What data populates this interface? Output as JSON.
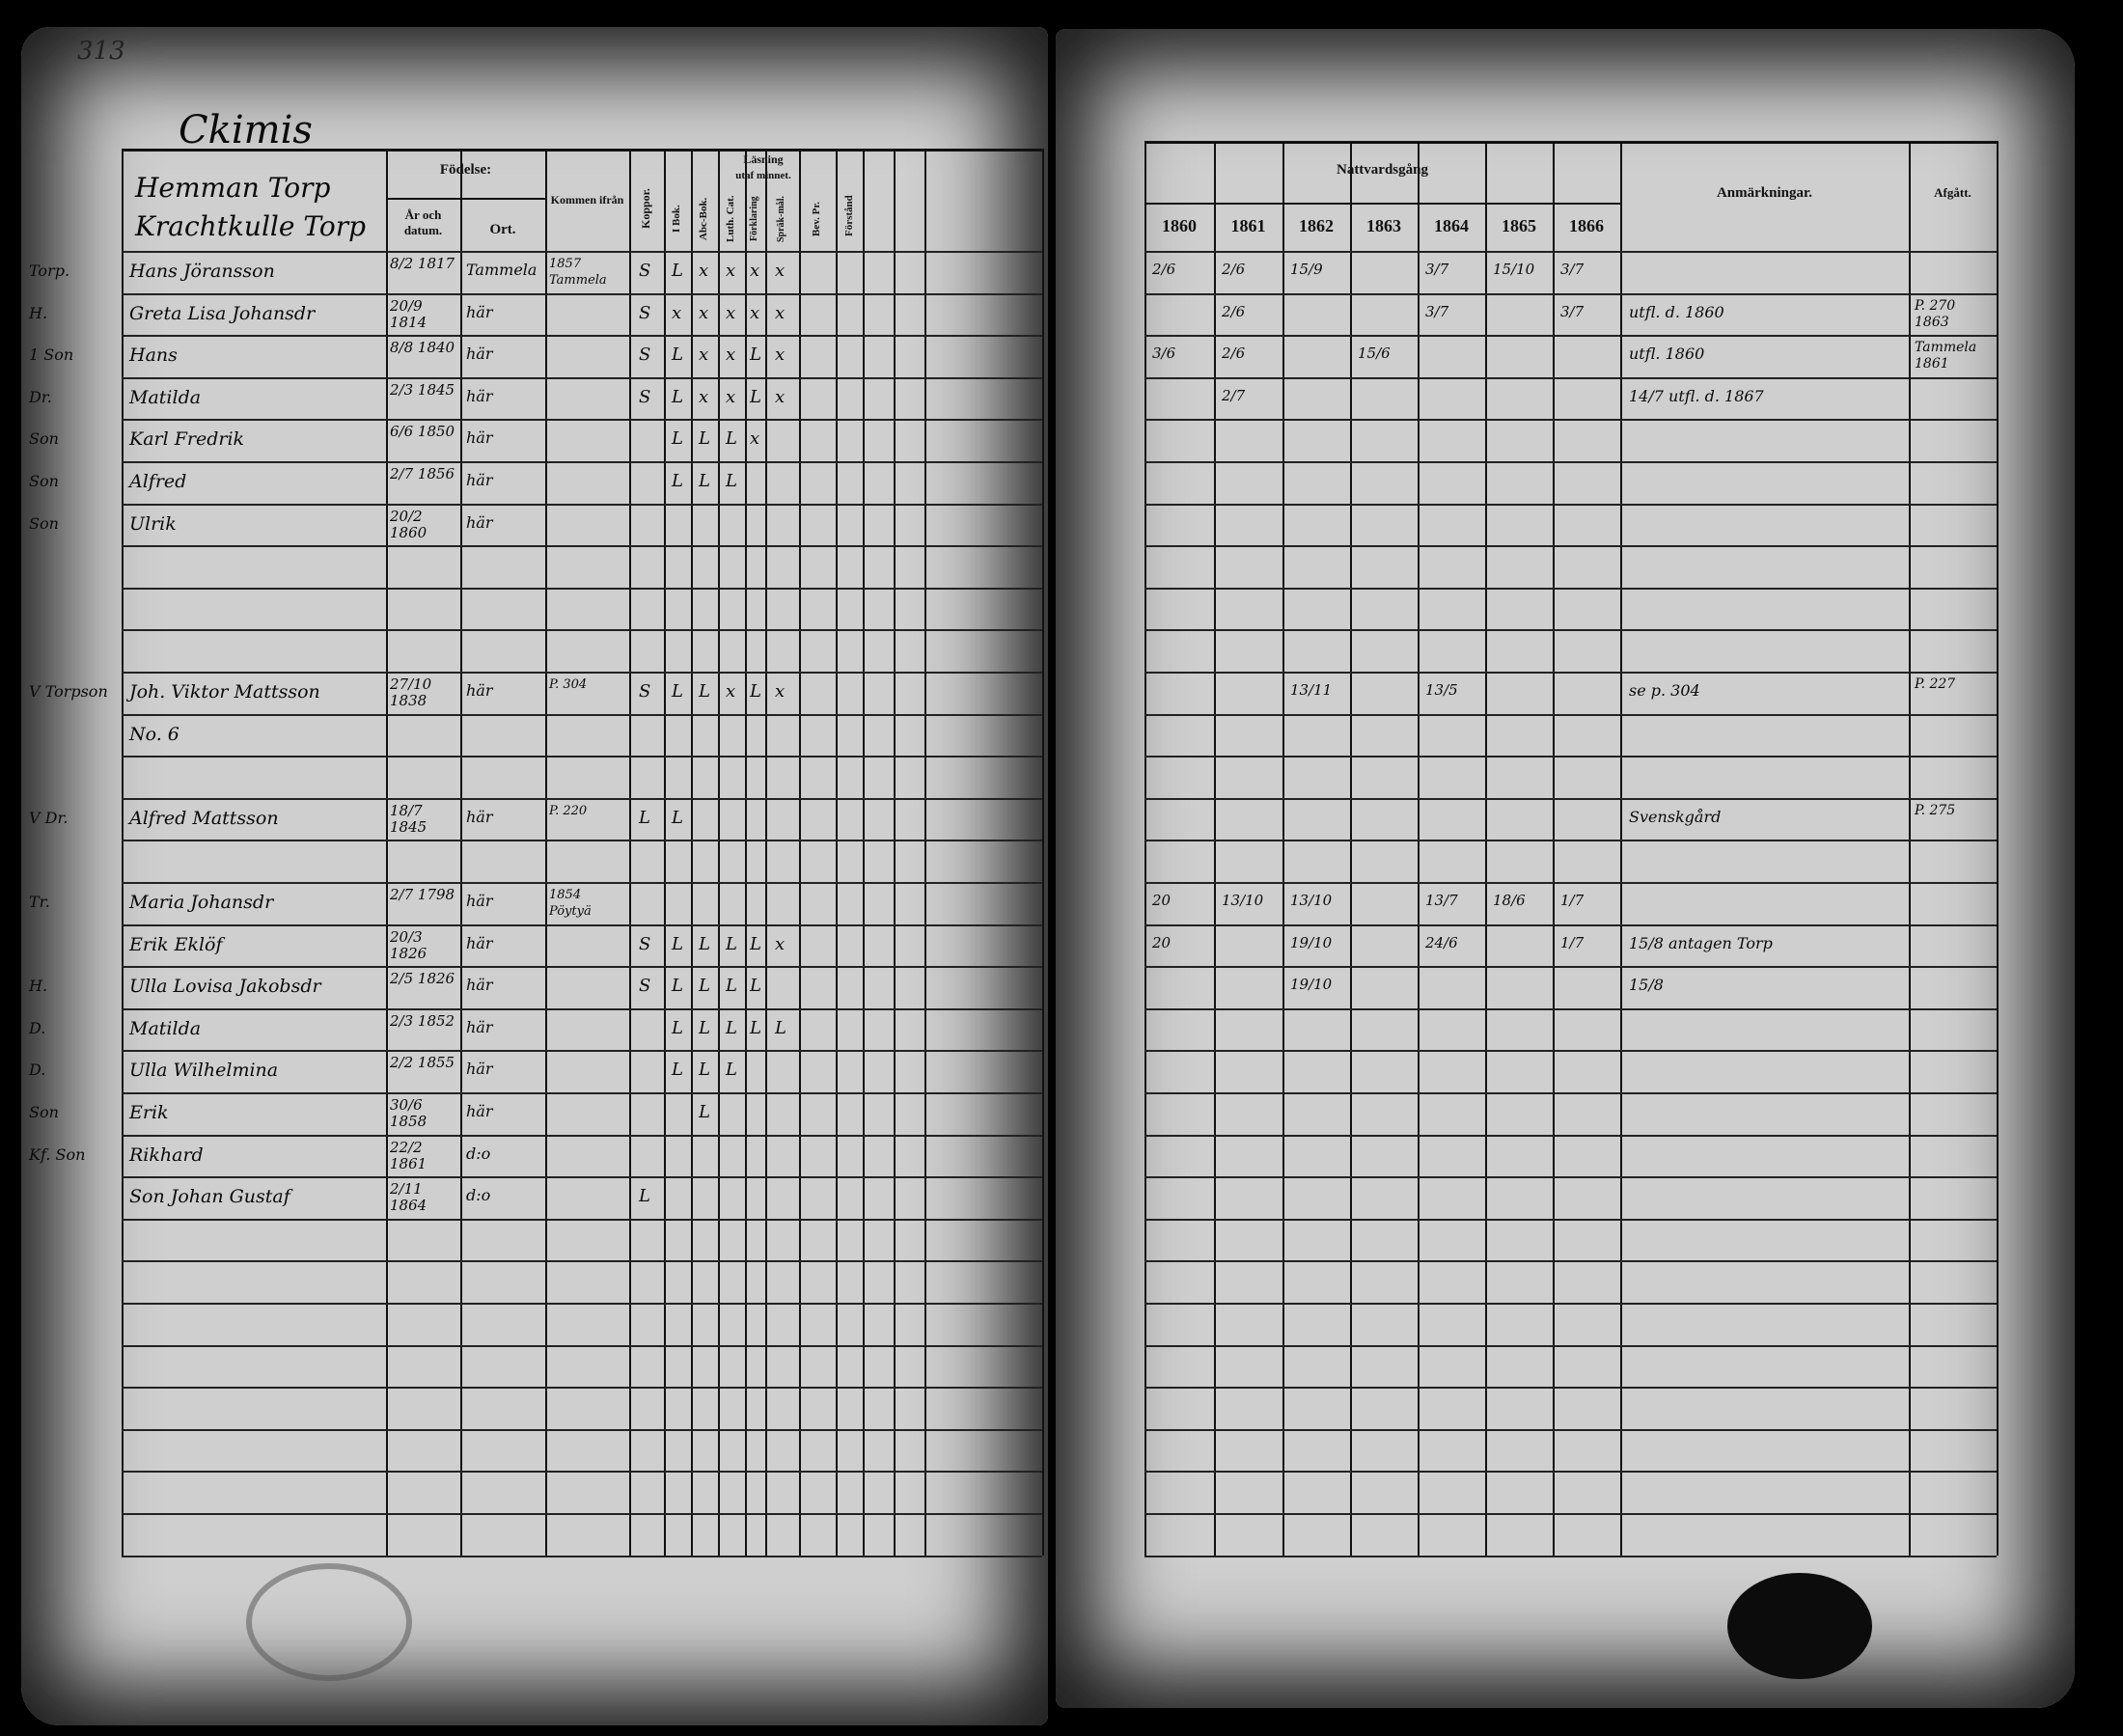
{
  "page_number": "313",
  "village": "Ckimis",
  "household_heading": [
    "Hemman Torp",
    "Krachtkulle Torp"
  ],
  "left_headers": {
    "birth": "Födelse:",
    "year_date": "År och datum.",
    "place": "Ort.",
    "came_from": "Kommen ifrån",
    "smallpox": "Koppor.",
    "reading": "Läsning",
    "by_heart": "utaf minnet.",
    "book": "I Bok.",
    "abc": "Abc-Bok.",
    "catechism": "Luth. Cat.",
    "explanation": "Förklaring",
    "language": "Spräk-mål.",
    "bev": "Bev. Pr.",
    "understanding": "Förstånd"
  },
  "right_headers": {
    "communion": "Nattvardsgång",
    "years": [
      "1860",
      "1861",
      "1862",
      "1863",
      "1864",
      "1865",
      "1866"
    ],
    "remarks": "Anmärkningar.",
    "departed": "Afgått."
  },
  "entries": [
    {
      "row": 0,
      "margin": "Torp.",
      "name": "Hans Jöransson",
      "birth": "8/2 1817",
      "place": "Tammela",
      "from": "1857 Tammela",
      "koppor": "S",
      "marks": [
        "L",
        "x",
        "x",
        "x",
        "x"
      ],
      "nv": [
        "2/6",
        "2/6",
        "15/9",
        "",
        "3/7",
        "15/10",
        "3/7"
      ],
      "remark": "",
      "afg": ""
    },
    {
      "row": 1,
      "margin": "H.",
      "name": "Greta Lisa Johansdr",
      "birth": "20/9 1814",
      "place": "här",
      "from": "",
      "koppor": "S",
      "marks": [
        "x",
        "x",
        "x",
        "x",
        "x"
      ],
      "nv": [
        "",
        "2/6",
        "",
        "",
        "3/7",
        "",
        "3/7"
      ],
      "remark": "utfl. d. 1860",
      "afg": "P. 270 1863"
    },
    {
      "row": 2,
      "margin": "1 Son",
      "name": "Hans",
      "birth": "8/8 1840",
      "place": "här",
      "from": "",
      "koppor": "S",
      "marks": [
        "L",
        "x",
        "x",
        "L",
        "x"
      ],
      "nv": [
        "3/6",
        "2/6",
        "",
        "15/6",
        "",
        "",
        ""
      ],
      "remark": "utfl. 1860",
      "afg": "Tammela 1861"
    },
    {
      "row": 3,
      "margin": "Dr.",
      "name": "Matilda",
      "birth": "2/3 1845",
      "place": "här",
      "from": "",
      "koppor": "S",
      "marks": [
        "L",
        "x",
        "x",
        "L",
        "x"
      ],
      "nv": [
        "",
        "2/7",
        "",
        "",
        "",
        "",
        ""
      ],
      "remark": "14/7 utfl. d. 1867",
      "afg": ""
    },
    {
      "row": 4,
      "margin": "Son",
      "name": "Karl Fredrik",
      "birth": "6/6 1850",
      "place": "här",
      "from": "",
      "koppor": "",
      "marks": [
        "L",
        "L",
        "L",
        "x",
        ""
      ],
      "nv": [
        "",
        "",
        "",
        "",
        "",
        "",
        ""
      ],
      "remark": "",
      "afg": ""
    },
    {
      "row": 5,
      "margin": "Son",
      "name": "Alfred",
      "birth": "2/7 1856",
      "place": "här",
      "from": "",
      "koppor": "",
      "marks": [
        "L",
        "L",
        "L",
        "",
        ""
      ],
      "nv": [
        "",
        "",
        "",
        "",
        "",
        "",
        ""
      ],
      "remark": "",
      "afg": ""
    },
    {
      "row": 6,
      "margin": "Son",
      "name": "Ulrik",
      "birth": "20/2 1860",
      "place": "här",
      "from": "",
      "koppor": "",
      "marks": [
        "",
        "",
        "",
        "",
        ""
      ],
      "nv": [
        "",
        "",
        "",
        "",
        "",
        "",
        ""
      ],
      "remark": "",
      "afg": ""
    },
    {
      "row": 10,
      "margin": "V Torpson",
      "name": "Joh. Viktor Mattsson",
      "birth": "27/10 1838",
      "place": "här",
      "from": "P. 304",
      "koppor": "S",
      "marks": [
        "L",
        "L",
        "x",
        "L",
        "x"
      ],
      "nv": [
        "",
        "",
        "13/11",
        "",
        "13/5",
        "",
        ""
      ],
      "remark": "se p. 304",
      "afg": "P. 227"
    },
    {
      "row": 11,
      "margin": "",
      "name": "No. 6",
      "birth": "",
      "place": "",
      "from": "",
      "koppor": "",
      "marks": [
        "",
        "",
        "",
        "",
        ""
      ],
      "nv": [
        "",
        "",
        "",
        "",
        "",
        "",
        ""
      ],
      "remark": "",
      "afg": ""
    },
    {
      "row": 13,
      "margin": "V Dr.",
      "name": "Alfred Mattsson",
      "birth": "18/7 1845",
      "place": "här",
      "from": "P. 220",
      "koppor": "L",
      "marks": [
        "L",
        "",
        "",
        "",
        ""
      ],
      "nv": [
        "",
        "",
        "",
        "",
        "",
        "",
        ""
      ],
      "remark": "Svenskgård",
      "afg": "P. 275"
    },
    {
      "row": 15,
      "margin": "Tr.",
      "name": "Maria Johansdr",
      "birth": "2/7 1798",
      "place": "här",
      "from": "1854 Pöytyä",
      "koppor": "",
      "marks": [
        "",
        "",
        "",
        "",
        ""
      ],
      "nv": [
        "20",
        "13/10",
        "13/10",
        "",
        "13/7",
        "18/6",
        "1/7"
      ],
      "remark": "",
      "afg": ""
    },
    {
      "row": 16,
      "margin": "",
      "name": "Erik Eklöf",
      "birth": "20/3 1826",
      "place": "här",
      "from": "",
      "koppor": "S",
      "marks": [
        "L",
        "L",
        "L",
        "L",
        "x"
      ],
      "nv": [
        "20",
        "",
        "19/10",
        "",
        "24/6",
        "",
        "1/7"
      ],
      "remark": "15/8 antagen Torp",
      "afg": ""
    },
    {
      "row": 17,
      "margin": "H.",
      "name": "Ulla Lovisa Jakobsdr",
      "birth": "2/5 1826",
      "place": "här",
      "from": "",
      "koppor": "S",
      "marks": [
        "L",
        "L",
        "L",
        "L",
        ""
      ],
      "nv": [
        "",
        "",
        "19/10",
        "",
        "",
        "",
        ""
      ],
      "remark": "15/8",
      "afg": ""
    },
    {
      "row": 18,
      "margin": "D.",
      "name": "Matilda",
      "birth": "2/3 1852",
      "place": "här",
      "from": "",
      "koppor": "",
      "marks": [
        "L",
        "L",
        "L",
        "L",
        "L"
      ],
      "nv": [
        "",
        "",
        "",
        "",
        "",
        "",
        ""
      ],
      "remark": "",
      "afg": ""
    },
    {
      "row": 19,
      "margin": "D.",
      "name": "Ulla Wilhelmina",
      "birth": "2/2 1855",
      "place": "här",
      "from": "",
      "koppor": "",
      "marks": [
        "L",
        "L",
        "L",
        "",
        ""
      ],
      "nv": [
        "",
        "",
        "",
        "",
        "",
        "",
        ""
      ],
      "remark": "",
      "afg": ""
    },
    {
      "row": 20,
      "margin": "Son",
      "name": "Erik",
      "birth": "30/6 1858",
      "place": "här",
      "from": "",
      "koppor": "",
      "marks": [
        "",
        "L",
        "",
        "",
        ""
      ],
      "nv": [
        "",
        "",
        "",
        "",
        "",
        "",
        ""
      ],
      "remark": "",
      "afg": ""
    },
    {
      "row": 21,
      "margin": "Kf. Son",
      "name": "Rikhard",
      "birth": "22/2 1861",
      "place": "d:o",
      "from": "",
      "koppor": "",
      "marks": [
        "",
        "",
        "",
        "",
        ""
      ],
      "nv": [
        "",
        "",
        "",
        "",
        "",
        "",
        ""
      ],
      "remark": "",
      "afg": ""
    },
    {
      "row": 22,
      "margin": "",
      "name": "Son Johan Gustaf",
      "birth": "2/11 1864",
      "place": "d:o",
      "from": "",
      "koppor": "L",
      "marks": [
        "",
        "",
        "",
        "",
        ""
      ],
      "nv": [
        "",
        "",
        "",
        "",
        "",
        "",
        ""
      ],
      "remark": "",
      "afg": ""
    }
  ],
  "colors": {
    "paper": "#cfcfcf",
    "ink": "#0a0a0a",
    "background": "#000000"
  }
}
